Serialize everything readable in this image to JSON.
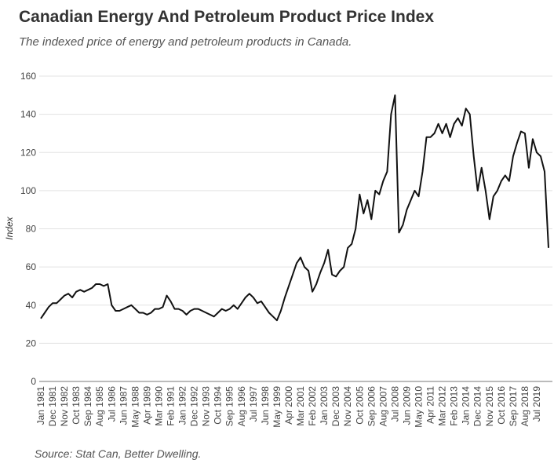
{
  "chart_data": {
    "type": "line",
    "title": "Canadian Energy And Petroleum Product Price Index",
    "subtitle": "The indexed price of energy and petroleum products in Canada.",
    "y_label": "Index",
    "source": "Source: Stat Can, Better Dwelling.",
    "categories": [
      "Jan 1981",
      null,
      null,
      "Dec 1981",
      null,
      null,
      "Nov 1982",
      null,
      null,
      "Oct 1983",
      null,
      null,
      "Sep 1984",
      null,
      null,
      "Aug 1985",
      null,
      null,
      "Jul 1986",
      null,
      null,
      "Jun 1987",
      null,
      null,
      "May 1988",
      null,
      null,
      "Apr 1989",
      null,
      null,
      "Mar 1990",
      null,
      null,
      "Feb 1991",
      null,
      null,
      "Jan 1992",
      null,
      null,
      "Dec 1992",
      null,
      null,
      "Nov 1993",
      null,
      null,
      "Oct 1994",
      null,
      null,
      "Sep 1995",
      null,
      null,
      "Aug 1996",
      null,
      null,
      "Jul 1997",
      null,
      null,
      "Jun 1998",
      null,
      null,
      "May 1999",
      null,
      null,
      "Apr 2000",
      null,
      null,
      "Mar 2001",
      null,
      null,
      "Feb 2002",
      null,
      null,
      "Jan 2003",
      null,
      null,
      "Dec 2003",
      null,
      null,
      "Nov 2004",
      null,
      null,
      "Oct 2005",
      null,
      null,
      "Sep 2006",
      null,
      null,
      "Aug 2007",
      null,
      null,
      "Jul 2008",
      null,
      null,
      "Jun 2009",
      null,
      null,
      "May 2010",
      null,
      null,
      "Apr 2011",
      null,
      null,
      "Mar 2012",
      null,
      null,
      "Feb 2013",
      null,
      null,
      "Jan 2014",
      null,
      null,
      "Dec 2014",
      null,
      null,
      "Nov 2015",
      null,
      null,
      "Oct 2016",
      null,
      null,
      "Sep 2017",
      null,
      null,
      "Aug 2018",
      null,
      null,
      "Jul 2019",
      null,
      null,
      null
    ],
    "series": [
      {
        "name": "Index",
        "color": "#111111",
        "values": [
          33,
          36,
          39,
          41,
          41,
          43,
          45,
          46,
          44,
          47,
          48,
          47,
          48,
          49,
          51,
          51,
          50,
          51,
          40,
          37,
          37,
          38,
          39,
          40,
          38,
          36,
          36,
          35,
          36,
          38,
          38,
          39,
          45,
          42,
          38,
          38,
          37,
          35,
          37,
          38,
          38,
          37,
          36,
          35,
          34,
          36,
          38,
          37,
          38,
          40,
          38,
          41,
          44,
          46,
          44,
          41,
          42,
          39,
          36,
          34,
          32,
          37,
          44,
          50,
          56,
          62,
          65,
          60,
          58,
          47,
          51,
          57,
          62,
          69,
          56,
          55,
          58,
          60,
          70,
          72,
          80,
          98,
          88,
          95,
          85,
          100,
          98,
          105,
          110,
          140,
          150,
          78,
          82,
          90,
          95,
          100,
          97,
          110,
          128,
          128,
          130,
          135,
          130,
          135,
          128,
          135,
          138,
          134,
          143,
          140,
          118,
          100,
          112,
          100,
          85,
          97,
          100,
          105,
          108,
          105,
          118,
          125,
          131,
          130,
          112,
          127,
          120,
          118,
          110,
          70
        ]
      }
    ],
    "ylim": [
      0,
      160
    ],
    "yticks": [
      0,
      20,
      40,
      60,
      80,
      100,
      120,
      140,
      160
    ],
    "grid": true
  }
}
